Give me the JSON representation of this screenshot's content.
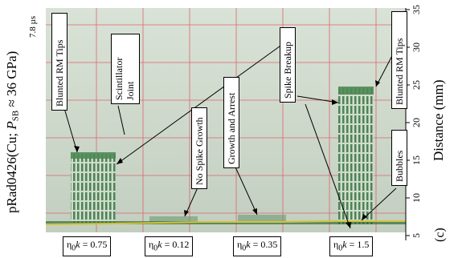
{
  "figure": {
    "left_label": {
      "prefix": "pRad0426(Cu; ",
      "var": "P",
      "sub": "SB",
      "suffix": " ≈ 36 GPa)"
    },
    "time_label": "7.8 µs",
    "right_axis_label": "Distance (mm)",
    "panel_tag": "(c)",
    "right_axis_ticks": [
      "35",
      "30",
      "25",
      "20",
      "15",
      "10",
      "5"
    ],
    "annotations": {
      "blunted_left": "Blunted RM Tips",
      "scintillator": "Scintillator Joint",
      "no_spike": "No Spike Growth",
      "growth_arrest": "Growth and Arrest",
      "spike_breakup": "Spike Breakup",
      "blunted_right": "Blunted RM Tips",
      "bubbles": "Bubbles"
    },
    "eta_labels": [
      {
        "value": "0.75"
      },
      {
        "value": "0.12"
      },
      {
        "value": "0.35"
      },
      {
        "value": "1.5"
      }
    ],
    "colors": {
      "background": "#cbd6c8",
      "grid": "#e05060",
      "spikes": "#3f7a4a",
      "base_line": "#d4c237"
    }
  }
}
